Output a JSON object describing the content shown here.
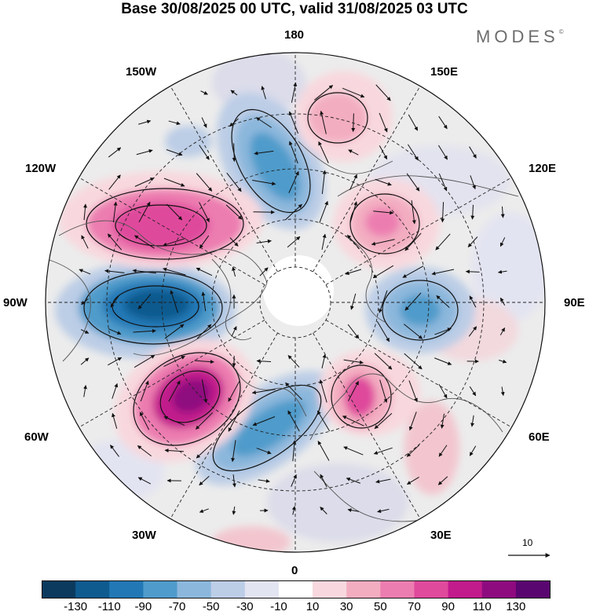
{
  "title": "Base 30/08/2025 00 UTC, valid 31/08/2025 03 UTC",
  "logo": "MODES",
  "logo_mark": "©",
  "longitude_labels": {
    "top": "180",
    "top_left": "150W",
    "top_right": "150E",
    "upper_left": "120W",
    "upper_right": "120E",
    "left": "90W",
    "right": "90E",
    "lower_left": "60W",
    "lower_right": "60E",
    "bottom_left": "30W",
    "bottom_right": "30E",
    "bottom": "0"
  },
  "reference_vector": {
    "label": "10"
  },
  "colorbar": {
    "tick_labels": [
      "-130",
      "-110",
      "-90",
      "-70",
      "-50",
      "-30",
      "-10",
      "10",
      "30",
      "50",
      "70",
      "90",
      "110",
      "130"
    ],
    "colors": [
      "#0b3a5e",
      "#0f5a8f",
      "#2278b5",
      "#4f9bcb",
      "#8cb7dc",
      "#bccde6",
      "#e3e4f1",
      "#ffffff",
      "#f8d8de",
      "#f3adc1",
      "#ec7db0",
      "#df4a9c",
      "#c21b8c",
      "#8e0b7f",
      "#5a0670"
    ]
  },
  "colors": {
    "land_outline": "#555555",
    "grid": "#222222",
    "arrow": "#111111"
  }
}
